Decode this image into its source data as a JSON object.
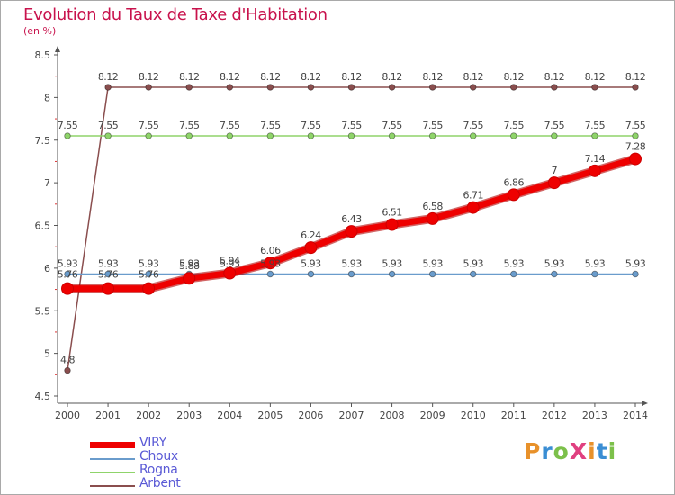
{
  "title": "Evolution du Taux de Taxe d'Habitation",
  "subtitle": "(en %)",
  "logo_text": "ProXiti",
  "chart_data": {
    "type": "line",
    "title": "Evolution du Taux de Taxe d'Habitation",
    "ylabel": "(en %)",
    "xlabel": "",
    "x": [
      "2000",
      "2001",
      "2002",
      "2003",
      "2004",
      "2005",
      "2006",
      "2007",
      "2008",
      "2009",
      "2010",
      "2011",
      "2012",
      "2013",
      "2014"
    ],
    "ylim": [
      4.5,
      8.5
    ],
    "yticks": [
      "4.5",
      "5",
      "5.5",
      "6",
      "6.5",
      "7",
      "7.5",
      "8",
      "8.5"
    ],
    "grid": false,
    "legend_position": "bottom-left",
    "series": [
      {
        "name": "VIRY",
        "color": "#ee0000",
        "values": [
          5.76,
          5.76,
          5.76,
          5.88,
          5.94,
          6.06,
          6.24,
          6.43,
          6.51,
          6.58,
          6.71,
          6.86,
          7,
          7.14,
          7.28
        ],
        "labels": [
          "5.76",
          "5.76",
          "5.76",
          "5.88",
          "5.94",
          "6.06",
          "6.24",
          "6.43",
          "6.51",
          "6.58",
          "6.71",
          "6.86",
          "7",
          "7.14",
          "7.28"
        ]
      },
      {
        "name": "Choux",
        "color": "#6a9ccc",
        "values": [
          5.93,
          5.93,
          5.93,
          5.93,
          5.93,
          5.93,
          5.93,
          5.93,
          5.93,
          5.93,
          5.93,
          5.93,
          5.93,
          5.93,
          5.93
        ],
        "labels": [
          "5.93",
          "5.93",
          "5.93",
          "5.93",
          "5.93",
          "5.93",
          "5.93",
          "5.93",
          "5.93",
          "5.93",
          "5.93",
          "5.93",
          "5.93",
          "5.93",
          "5.93"
        ]
      },
      {
        "name": "Rogna",
        "color": "#8fd46a",
        "values": [
          7.55,
          7.55,
          7.55,
          7.55,
          7.55,
          7.55,
          7.55,
          7.55,
          7.55,
          7.55,
          7.55,
          7.55,
          7.55,
          7.55,
          7.55
        ],
        "labels": [
          "7.55",
          "7.55",
          "7.55",
          "7.55",
          "7.55",
          "7.55",
          "7.55",
          "7.55",
          "7.55",
          "7.55",
          "7.55",
          "7.55",
          "7.55",
          "7.55",
          "7.55"
        ]
      },
      {
        "name": "Arbent",
        "color": "#8a4e4e",
        "values": [
          4.8,
          8.12,
          8.12,
          8.12,
          8.12,
          8.12,
          8.12,
          8.12,
          8.12,
          8.12,
          8.12,
          8.12,
          8.12,
          8.12,
          8.12
        ],
        "labels": [
          "4.8",
          "8.12",
          "8.12",
          "8.12",
          "8.12",
          "8.12",
          "8.12",
          "8.12",
          "8.12",
          "8.12",
          "8.12",
          "8.12",
          "8.12",
          "8.12",
          "8.12"
        ]
      }
    ]
  }
}
